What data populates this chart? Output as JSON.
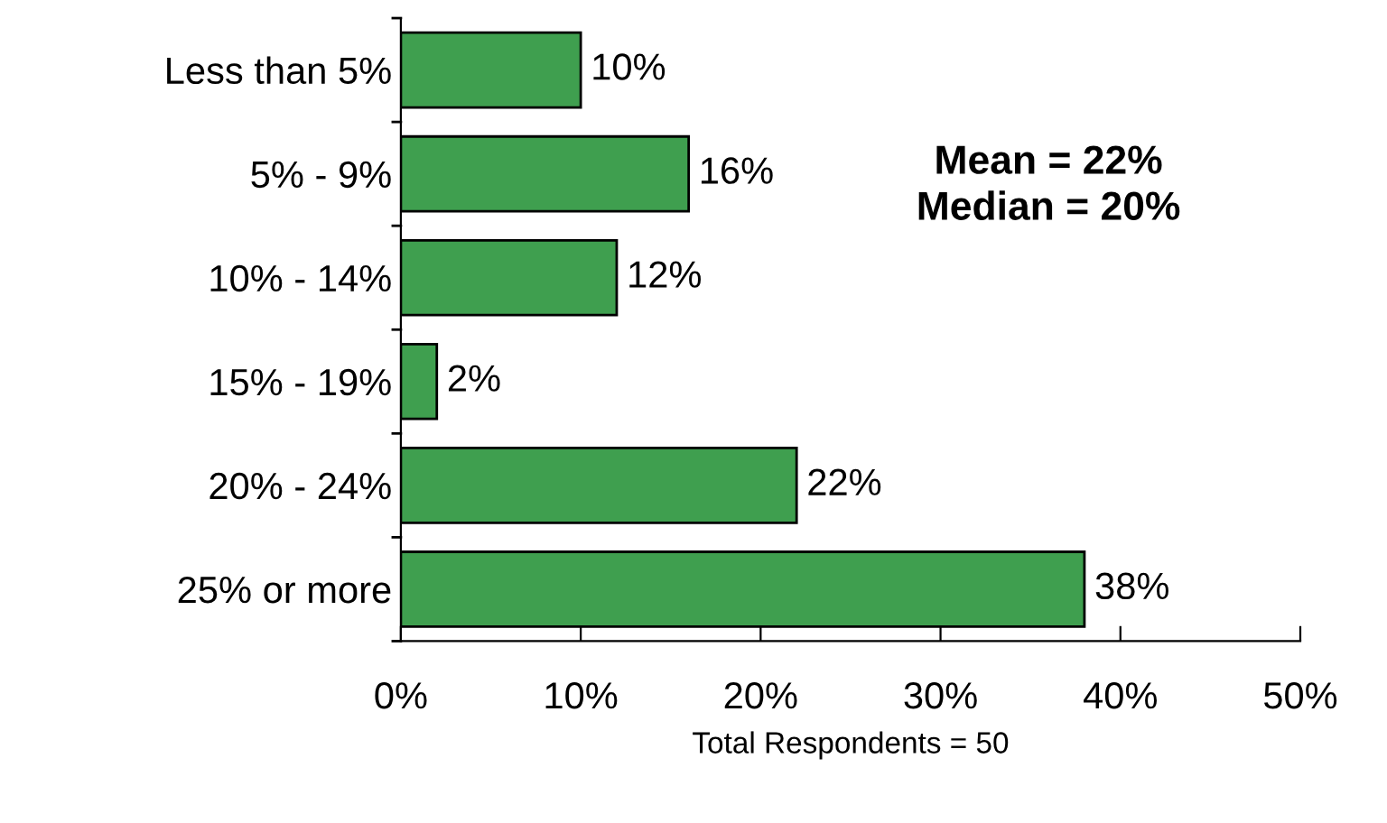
{
  "chart_data": {
    "type": "bar",
    "orientation": "horizontal",
    "xlabel": "Total Respondents = 50",
    "categories": [
      "Less than 5%",
      "5% - 9%",
      "10% - 14%",
      "15% - 19%",
      "20% - 24%",
      "25% or more"
    ],
    "values": [
      10,
      16,
      12,
      2,
      22,
      38
    ],
    "value_labels": [
      "10%",
      "16%",
      "12%",
      "2%",
      "22%",
      "38%"
    ],
    "color": "#3f9f4f",
    "xlim": [
      0,
      50
    ],
    "xticks": [
      {
        "value": 0,
        "label": "0%"
      },
      {
        "value": 10,
        "label": "10%"
      },
      {
        "value": 20,
        "label": "20%"
      },
      {
        "value": 30,
        "label": "30%"
      },
      {
        "value": 40,
        "label": "40%"
      },
      {
        "value": 50,
        "label": "50%"
      }
    ],
    "annotations": [
      "Mean = 22%\nMedian = 20%"
    ],
    "grid": false,
    "legend": false
  }
}
